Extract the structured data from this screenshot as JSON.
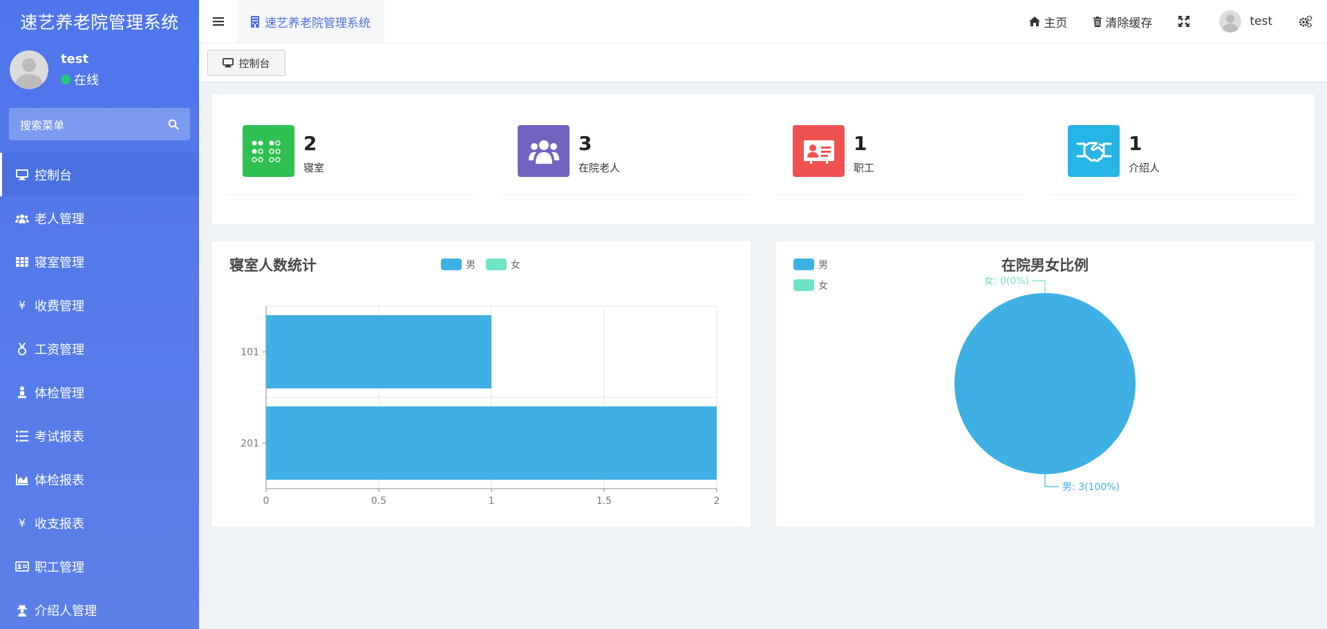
{
  "sidebar": {
    "brand": "速艺养老院管理系统",
    "user": {
      "name": "test",
      "status": "在线"
    },
    "search_placeholder": "搜索菜单",
    "items": [
      {
        "label": "控制台",
        "icon": "monitor-icon",
        "active": true
      },
      {
        "label": "老人管理",
        "icon": "users-icon"
      },
      {
        "label": "寝室管理",
        "icon": "grid-icon"
      },
      {
        "label": "收费管理",
        "icon": "yen-icon"
      },
      {
        "label": "工资管理",
        "icon": "medal-icon"
      },
      {
        "label": "体检管理",
        "icon": "person-icon"
      },
      {
        "label": "考试报表",
        "icon": "list-icon"
      },
      {
        "label": "体检报表",
        "icon": "area-chart-icon"
      },
      {
        "label": "收支报表",
        "icon": "yen-icon"
      },
      {
        "label": "职工管理",
        "icon": "id-card-icon"
      },
      {
        "label": "介绍人管理",
        "icon": "user-secret-icon"
      }
    ]
  },
  "header": {
    "tab_title": "速艺养老院管理系统",
    "home": "主页",
    "clear_cache": "清除缓存",
    "username": "test"
  },
  "tabbar": {
    "active_tab": "控制台"
  },
  "stats": [
    {
      "value": "2",
      "label": "寝室",
      "color": "#2ec152",
      "icon": "dorm-dots-icon"
    },
    {
      "value": "3",
      "label": "在院老人",
      "color": "#7462c0",
      "icon": "users-icon"
    },
    {
      "value": "1",
      "label": "职工",
      "color": "#f05252",
      "icon": "id-card-icon"
    },
    {
      "value": "1",
      "label": "介绍人",
      "color": "#26b5e6",
      "icon": "handshake-icon"
    }
  ],
  "chart_data": [
    {
      "type": "bar",
      "orientation": "horizontal",
      "title": "寝室人数统计",
      "categories": [
        "101",
        "201"
      ],
      "series": [
        {
          "name": "男",
          "values": [
            1,
            2
          ],
          "color": "#3eb0e3"
        },
        {
          "name": "女",
          "values": [
            0,
            0
          ],
          "color": "#6ee4c6"
        }
      ],
      "xlim": [
        0,
        2
      ],
      "xticks": [
        "0",
        "0.5",
        "1",
        "1.5",
        "2"
      ],
      "legend": "top",
      "grid": true
    },
    {
      "type": "pie",
      "title": "在院男女比例",
      "slices": [
        {
          "name": "男",
          "value": 3,
          "label": "男: 3(100%)",
          "color": "#3eb0e3"
        },
        {
          "name": "女",
          "value": 0,
          "label": "女: 0(0%)",
          "color": "#6ee4c6"
        }
      ],
      "legend": "top-left"
    }
  ]
}
